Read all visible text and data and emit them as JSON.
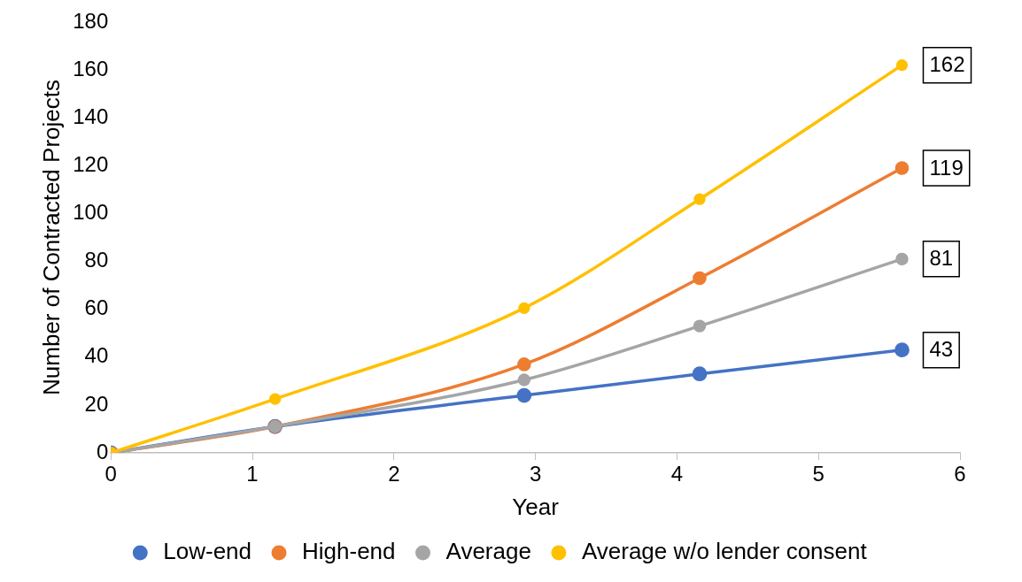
{
  "chart_data": {
    "type": "line",
    "xlabel": "Year",
    "ylabel": "Number of Contracted Projects",
    "x": [
      0,
      1.16,
      2.92,
      4.16,
      5.59
    ],
    "series": [
      {
        "name": "Low-end",
        "color": "#4472c4",
        "values": [
          0,
          11,
          24,
          33,
          43
        ],
        "value_labels": [
          null,
          null,
          null,
          null,
          "43"
        ]
      },
      {
        "name": "High-end",
        "color": "#ed7d31",
        "values": [
          0,
          11,
          37,
          73,
          119
        ],
        "value_labels": [
          null,
          null,
          null,
          null,
          "119"
        ]
      },
      {
        "name": "Average",
        "color": "#a5a5a5",
        "values": [
          0,
          11,
          30.5,
          53,
          81
        ],
        "value_labels": [
          null,
          null,
          null,
          null,
          "81"
        ]
      },
      {
        "name": "Average w/o lender consent",
        "color": "#ffc000",
        "values": [
          0,
          22.5,
          60.5,
          106,
          162
        ],
        "value_labels": [
          null,
          null,
          null,
          null,
          "162"
        ]
      }
    ],
    "xlim": [
      0,
      6
    ],
    "xticks": [
      0,
      1,
      2,
      3,
      4,
      5,
      6
    ],
    "ylim": [
      0,
      180
    ],
    "yticks": [
      0,
      20,
      40,
      60,
      80,
      100,
      120,
      140,
      160,
      180
    ],
    "grid": false,
    "legend": "bottom",
    "marker": "circle",
    "line_style": "solid"
  }
}
